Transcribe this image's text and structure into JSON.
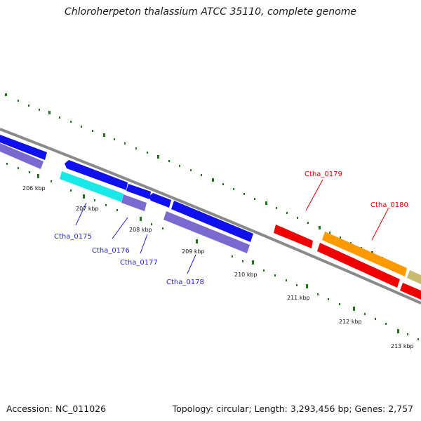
{
  "title": "Chloroherpeton thalassium ATCC 35110, complete genome",
  "footer": {
    "accession": "Accession: NC_011026",
    "summary": "Topology: circular; Length: 3,293,456 bp; Genes: 2,757"
  },
  "ticks": [
    {
      "label": "206 kbp"
    },
    {
      "label": "207 kbp"
    },
    {
      "label": "208 kbp"
    },
    {
      "label": "209 kbp"
    },
    {
      "label": "210 kbp"
    },
    {
      "label": "211 kbp"
    },
    {
      "label": "212 kbp"
    },
    {
      "label": "213 kbp"
    }
  ],
  "gene_labels": [
    {
      "name": "Ctha_0175",
      "color": "#1f1fd0"
    },
    {
      "name": "Ctha_0176",
      "color": "#1f1fd0"
    },
    {
      "name": "Ctha_0177",
      "color": "#1f1fd0"
    },
    {
      "name": "Ctha_0178",
      "color": "#1f1fd0"
    },
    {
      "name": "Ctha_0179",
      "color": "#e00000"
    },
    {
      "name": "Ctha_0180",
      "color": "#e00000"
    }
  ],
  "colors": {
    "backbone": "#8a8a8a",
    "tick": "#1a7a1a",
    "cds_blue": "#1010ee",
    "cds_cyan": "#17e8e8",
    "cds_purple": "#7a6ad0",
    "cds_red": "#f00000",
    "cds_orange": "#ff9900",
    "cds_olive": "#c8bb70"
  }
}
